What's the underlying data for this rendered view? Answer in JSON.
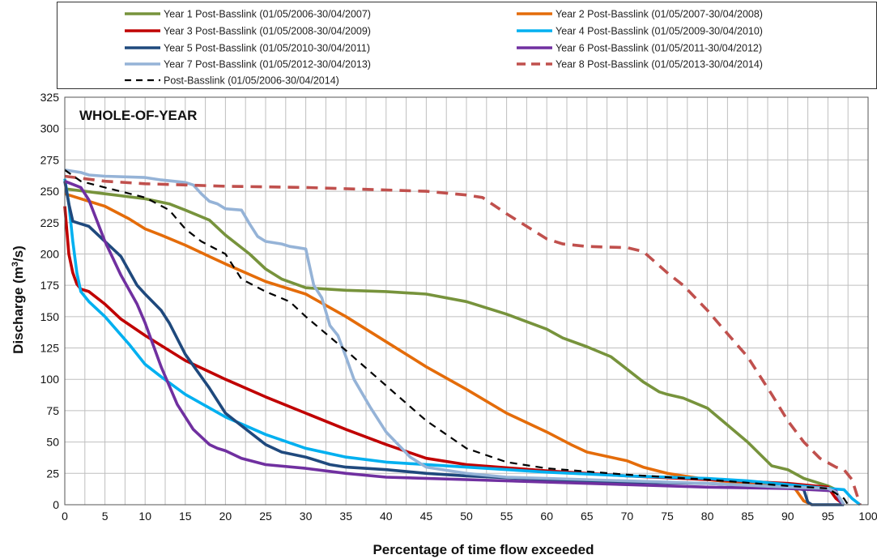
{
  "chart_data": {
    "type": "line",
    "panel_label": "WHOLE-OF-YEAR",
    "xlabel": "Percentage of time flow exceeded",
    "ylabel_main": "Discharge (m",
    "ylabel_sup": "3",
    "ylabel_tail": "/s)",
    "xlim": [
      0,
      100
    ],
    "ylim": [
      0,
      325
    ],
    "x_ticks": [
      0,
      5,
      10,
      15,
      20,
      25,
      30,
      35,
      40,
      45,
      50,
      55,
      60,
      65,
      70,
      75,
      80,
      85,
      90,
      95,
      100
    ],
    "y_ticks": [
      0,
      25,
      50,
      75,
      100,
      125,
      150,
      175,
      200,
      225,
      250,
      275,
      300,
      325
    ],
    "grid": "on",
    "legend_position": "top",
    "series": [
      {
        "name": "Year 1  Post-Basslink (01/05/2006-30/04/2007)",
        "color": "#77933c",
        "dash": "solid",
        "x": [
          0,
          5,
          10,
          13,
          15,
          18,
          20,
          23,
          25,
          27,
          30,
          35,
          40,
          45,
          50,
          55,
          60,
          62,
          65,
          68,
          70,
          72,
          74,
          75,
          77,
          80,
          85,
          88,
          90,
          92,
          95,
          96
        ],
        "y": [
          252,
          248,
          244,
          240,
          235,
          227,
          215,
          200,
          188,
          180,
          173,
          171,
          170,
          168,
          162,
          152,
          140,
          133,
          126,
          118,
          108,
          98,
          90,
          88,
          85,
          77,
          50,
          31,
          28,
          21,
          15,
          12
        ]
      },
      {
        "name": "Year 2  Post-Basslink (01/05/2007-30/04/2008)",
        "color": "#e46c0a",
        "dash": "solid",
        "x": [
          0,
          5,
          8,
          10,
          12,
          15,
          18,
          20,
          25,
          30,
          35,
          40,
          45,
          50,
          55,
          60,
          63,
          65,
          70,
          72,
          75,
          80,
          85,
          90,
          91,
          92,
          93
        ],
        "y": [
          248,
          238,
          228,
          220,
          215,
          207,
          198,
          192,
          178,
          168,
          150,
          130,
          110,
          92,
          73,
          58,
          48,
          42,
          35,
          30,
          25,
          20,
          17,
          16,
          12,
          3,
          0
        ]
      },
      {
        "name": "Year 3  Post-Basslink (01/05/2008-30/04/2009)",
        "color": "#c00000",
        "dash": "solid",
        "x": [
          0,
          0.5,
          1,
          1.5,
          2,
          3,
          5,
          7,
          10,
          15,
          20,
          25,
          30,
          35,
          40,
          45,
          50,
          60,
          70,
          80,
          90,
          95,
          96,
          97
        ],
        "y": [
          238,
          200,
          185,
          176,
          172,
          170,
          160,
          148,
          135,
          115,
          100,
          86,
          73,
          60,
          48,
          37,
          32,
          27,
          23,
          20,
          17,
          14,
          5,
          0
        ]
      },
      {
        "name": "Year 4  Post-Basslink (01/05/2009-30/04/2010)",
        "color": "#00b0f0",
        "dash": "solid",
        "x": [
          0,
          0.5,
          1,
          1.5,
          2,
          3,
          5,
          8,
          10,
          12,
          15,
          20,
          25,
          30,
          35,
          40,
          50,
          60,
          70,
          80,
          85,
          90,
          95,
          97,
          98,
          99
        ],
        "y": [
          260,
          240,
          210,
          185,
          170,
          162,
          150,
          128,
          112,
          102,
          88,
          70,
          56,
          45,
          38,
          34,
          30,
          26,
          23,
          21,
          19,
          16,
          13,
          12,
          5,
          0
        ]
      },
      {
        "name": "Year 5  Post-Basslink (01/05/2010-30/04/2011)",
        "color": "#1f497d",
        "dash": "solid",
        "x": [
          0,
          0.5,
          1,
          2,
          3,
          5,
          7,
          9,
          10,
          12,
          13,
          15,
          18,
          20,
          22,
          25,
          27,
          30,
          33,
          35,
          40,
          45,
          50,
          60,
          70,
          80,
          90,
          92,
          92.5,
          93,
          97
        ],
        "y": [
          258,
          240,
          226,
          224,
          222,
          210,
          198,
          175,
          168,
          155,
          145,
          120,
          93,
          73,
          63,
          48,
          42,
          38,
          32,
          30,
          28,
          25,
          23,
          20,
          18,
          17,
          14,
          12,
          2,
          0,
          0
        ]
      },
      {
        "name": "Year 6  Post-Basslink (01/05/2011-30/04/2012)",
        "color": "#7030a0",
        "dash": "solid",
        "x": [
          0,
          2,
          3,
          5,
          7,
          9,
          10,
          12,
          14,
          16,
          18,
          19,
          20,
          22,
          25,
          30,
          35,
          40,
          50,
          60,
          70,
          80,
          90,
          96,
          96.5,
          97
        ],
        "y": [
          258,
          253,
          243,
          210,
          183,
          160,
          145,
          110,
          80,
          60,
          48,
          45,
          43,
          37,
          32,
          29,
          25,
          22,
          20,
          18,
          16,
          14,
          13,
          11,
          3,
          0
        ]
      },
      {
        "name": "Year 7 Post-Basslink (01/05/2012-30/04/2013)",
        "color": "#95b3d7",
        "dash": "solid",
        "x": [
          0,
          2,
          3,
          5,
          10,
          12,
          15,
          16,
          17,
          18,
          19,
          20,
          22,
          23,
          24,
          25,
          27,
          28,
          29,
          30,
          31,
          32,
          33,
          34,
          35,
          36,
          38,
          40,
          43,
          45,
          50,
          55,
          60,
          70,
          80,
          90,
          95,
          96,
          97
        ],
        "y": [
          267,
          265,
          263,
          262,
          261,
          259,
          257,
          255,
          248,
          242,
          240,
          236,
          235,
          224,
          214,
          210,
          208,
          206,
          205,
          204,
          175,
          165,
          143,
          135,
          118,
          100,
          78,
          58,
          38,
          30,
          25,
          22,
          21,
          19,
          17,
          14,
          13,
          10,
          0
        ]
      },
      {
        "name": "Year 8 Post-Basslink (01/05/2013-30/04/2014)",
        "color": "#c0504d",
        "dash": "dashed",
        "x": [
          0,
          5,
          10,
          15,
          20,
          30,
          40,
          45,
          50,
          52,
          55,
          58,
          60,
          62,
          65,
          70,
          72,
          75,
          77,
          80,
          82,
          85,
          88,
          90,
          92,
          94,
          96,
          97,
          98,
          99
        ],
        "y": [
          262,
          258,
          256,
          255,
          254,
          253,
          251,
          250,
          247,
          245,
          232,
          220,
          212,
          208,
          206,
          205,
          202,
          185,
          175,
          155,
          140,
          118,
          88,
          67,
          50,
          37,
          30,
          28,
          20,
          0
        ]
      },
      {
        "name": "Post-Basslink (01/05/2006-30/04/2014)",
        "color": "#000000",
        "dash": "dashed",
        "x": [
          0,
          2,
          5,
          10,
          13,
          15,
          17,
          20,
          22,
          25,
          28,
          30,
          35,
          40,
          45,
          50,
          55,
          60,
          70,
          80,
          90,
          95,
          97,
          97.5
        ],
        "y": [
          267,
          258,
          253,
          245,
          235,
          220,
          210,
          200,
          180,
          170,
          162,
          150,
          123,
          95,
          67,
          45,
          34,
          29,
          24,
          20,
          15,
          13,
          5,
          0
        ]
      }
    ]
  }
}
